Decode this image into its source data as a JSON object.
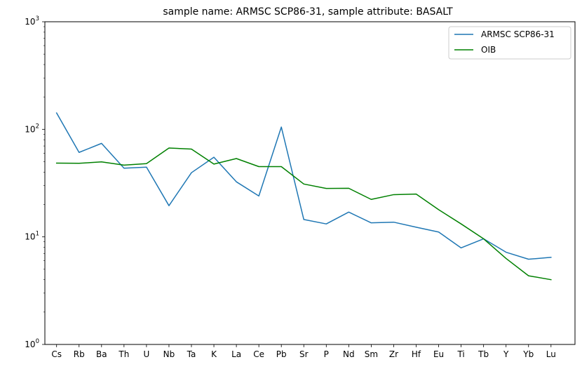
{
  "chart_data": {
    "type": "line",
    "title": "sample name: ARMSC SCP86-31, sample attribute: BASALT",
    "xlabel": "",
    "ylabel": "",
    "yscale": "log",
    "ylim": [
      1,
      1000
    ],
    "yticks": [
      {
        "value": 1,
        "base": "10",
        "exp": "0"
      },
      {
        "value": 10,
        "base": "10",
        "exp": "1"
      },
      {
        "value": 100,
        "base": "10",
        "exp": "2"
      },
      {
        "value": 1000,
        "base": "10",
        "exp": "3"
      }
    ],
    "grid": false,
    "legend": "top-right",
    "categories": [
      "Cs",
      "Rb",
      "Ba",
      "Th",
      "U",
      "Nb",
      "Ta",
      "K",
      "La",
      "Ce",
      "Pb",
      "Sr",
      "P",
      "Nd",
      "Sm",
      "Zr",
      "Hf",
      "Eu",
      "Ti",
      "Tb",
      "Y",
      "Yb",
      "Lu"
    ],
    "series": [
      {
        "name": "ARMSC SCP86-31",
        "color": "#1f77b4",
        "values": [
          142,
          61,
          74,
          43.5,
          44.5,
          19.5,
          39.5,
          55,
          32.5,
          24,
          105,
          14.5,
          13.2,
          17,
          13.5,
          13.7,
          12.3,
          11.1,
          7.9,
          9.6,
          7.2,
          6.2,
          6.45
        ]
      },
      {
        "name": "OIB",
        "color": "#008000",
        "values": [
          48.5,
          48.3,
          49.8,
          46.5,
          48,
          67,
          65.5,
          47.5,
          53.5,
          45,
          45,
          31,
          28.2,
          28.3,
          22.3,
          24.7,
          25,
          17.9,
          13.2,
          9.6,
          6.3,
          4.35,
          4.0
        ]
      }
    ]
  }
}
